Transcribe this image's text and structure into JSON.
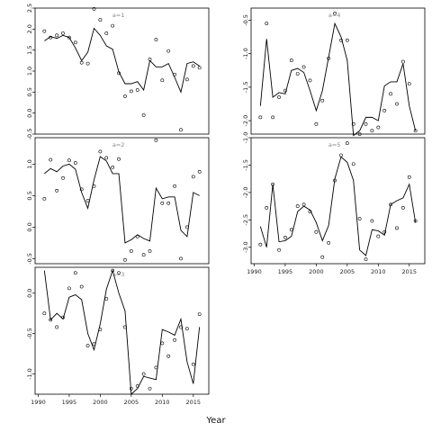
{
  "xlabel": "Year",
  "chart_data": [
    {
      "type": "line",
      "label": "a=1",
      "xlim": [
        1989.5,
        2017.5
      ],
      "ylim": [
        -0.5,
        2.5
      ],
      "xticks": [],
      "yticks": [
        {
          "v": -0.5,
          "t": "-0.5"
        },
        {
          "v": 0.0,
          "t": "0.0"
        },
        {
          "v": 0.5,
          "t": "0.5"
        },
        {
          "v": 1.0,
          "t": "1.0"
        },
        {
          "v": 1.5,
          "t": "1.5"
        },
        {
          "v": 2.0,
          "t": "2.0"
        },
        {
          "v": 2.5,
          "t": "2.5"
        }
      ],
      "line": {
        "x": [
          1991,
          1992,
          1993,
          1994,
          1995,
          1996,
          1997,
          1998,
          1999,
          2000,
          2001,
          2002,
          2003,
          2004,
          2005,
          2006,
          2007,
          2008,
          2009,
          2010,
          2011,
          2012,
          2013,
          2014,
          2015,
          2016
        ],
        "y": [
          1.72,
          1.82,
          1.78,
          1.85,
          1.8,
          1.55,
          1.25,
          1.45,
          2.02,
          1.85,
          1.6,
          1.52,
          0.98,
          0.7,
          0.7,
          0.75,
          0.55,
          1.25,
          1.1,
          1.1,
          1.18,
          0.85,
          0.5,
          1.18,
          1.22,
          1.12
        ]
      },
      "points": {
        "x": [
          1991,
          1992,
          1993,
          1994,
          1995,
          1996,
          1997,
          1998,
          1999,
          2000,
          2001,
          2002,
          2003,
          2004,
          2005,
          2006,
          2007,
          2008,
          2009,
          2010,
          2011,
          2012,
          2013,
          2014,
          2015,
          2016
        ],
        "y": [
          1.95,
          1.8,
          1.85,
          1.9,
          1.8,
          1.68,
          1.2,
          1.18,
          2.48,
          2.22,
          1.9,
          2.08,
          0.95,
          0.4,
          0.52,
          0.55,
          -0.05,
          1.28,
          1.75,
          0.78,
          1.48,
          0.92,
          -0.4,
          0.8,
          1.12,
          1.08
        ]
      }
    },
    {
      "type": "line",
      "label": "a=2",
      "xlim": [
        1989.5,
        2017.5
      ],
      "ylim": [
        -0.58,
        1.42
      ],
      "xticks": [],
      "yticks": [
        {
          "v": -0.5,
          "t": "-0.5"
        },
        {
          "v": 0.0,
          "t": "0.0"
        },
        {
          "v": 0.5,
          "t": "0.5"
        },
        {
          "v": 1.0,
          "t": "1.0"
        }
      ],
      "line": {
        "x": [
          1991,
          1992,
          1993,
          1994,
          1995,
          1996,
          1997,
          1998,
          1999,
          2000,
          2001,
          2002,
          2003,
          2004,
          2005,
          2006,
          2007,
          2008,
          2009,
          2010,
          2011,
          2012,
          2013,
          2014,
          2015,
          2016
        ],
        "y": [
          0.85,
          0.93,
          0.88,
          0.97,
          1.0,
          0.92,
          0.55,
          0.3,
          0.75,
          1.12,
          1.05,
          0.85,
          0.85,
          -0.25,
          -0.2,
          -0.12,
          -0.18,
          -0.22,
          0.62,
          0.45,
          0.48,
          0.48,
          -0.05,
          -0.15,
          0.55,
          0.5
        ]
      },
      "points": {
        "x": [
          1991,
          1992,
          1993,
          1994,
          1995,
          1996,
          1997,
          1998,
          1999,
          2000,
          2001,
          2002,
          2003,
          2004,
          2005,
          2006,
          2007,
          2008,
          2009,
          2010,
          2011,
          2012,
          2013,
          2014,
          2015,
          2016
        ],
        "y": [
          0.45,
          1.07,
          0.58,
          0.78,
          1.06,
          1.02,
          0.6,
          0.42,
          0.65,
          1.2,
          1.1,
          0.95,
          1.08,
          -0.52,
          -0.38,
          -0.15,
          -0.44,
          -0.38,
          1.38,
          0.38,
          0.38,
          0.65,
          -0.5,
          0.0,
          0.8,
          0.88
        ]
      }
    },
    {
      "type": "line",
      "label": "a=3",
      "xlim": [
        1989.5,
        2017.5
      ],
      "ylim": [
        -1.25,
        0.32
      ],
      "xticks": [
        {
          "v": 1990,
          "t": "1990"
        },
        {
          "v": 1995,
          "t": "1995"
        },
        {
          "v": 2000,
          "t": "2000"
        },
        {
          "v": 2005,
          "t": "2005"
        },
        {
          "v": 2010,
          "t": "2010"
        },
        {
          "v": 2015,
          "t": "2015"
        }
      ],
      "yticks": [
        {
          "v": -1.0,
          "t": "-1.0"
        },
        {
          "v": -0.5,
          "t": "-0.5"
        },
        {
          "v": 0.0,
          "t": "0.0"
        }
      ],
      "line": {
        "x": [
          1991,
          1992,
          1993,
          1994,
          1995,
          1996,
          1997,
          1998,
          1999,
          2000,
          2001,
          2002,
          2003,
          2004,
          2005,
          2006,
          2007,
          2008,
          2009,
          2010,
          2011,
          2012,
          2013,
          2014,
          2015,
          2016
        ],
        "y": [
          0.28,
          -0.33,
          -0.25,
          -0.32,
          -0.05,
          -0.02,
          -0.08,
          -0.5,
          -0.7,
          -0.38,
          0.05,
          0.28,
          0.0,
          -0.22,
          -1.25,
          -1.18,
          -1.03,
          -1.05,
          -1.07,
          -0.45,
          -0.48,
          -0.52,
          -0.32,
          -0.85,
          -1.12,
          -0.42
        ]
      },
      "points": {
        "x": [
          1991,
          1992,
          1993,
          1994,
          1995,
          1996,
          1997,
          1998,
          1999,
          2000,
          2001,
          2002,
          2003,
          2004,
          2005,
          2006,
          2007,
          2008,
          2009,
          2010,
          2011,
          2012,
          2013,
          2014,
          2015,
          2016
        ],
        "y": [
          -0.25,
          -0.33,
          -0.42,
          -0.3,
          0.06,
          0.25,
          0.08,
          -0.65,
          -0.63,
          -0.45,
          -0.07,
          0.28,
          0.25,
          -0.42,
          -1.18,
          -1.15,
          -1.0,
          -1.18,
          -0.92,
          -0.62,
          -0.78,
          -0.58,
          -0.42,
          -0.44,
          -0.88,
          -0.26
        ]
      }
    },
    {
      "type": "line",
      "label": "a=4",
      "xlim": [
        1989.5,
        2017.5
      ],
      "ylim": [
        -2.2,
        -0.32
      ],
      "xticks": [],
      "yticks": [
        {
          "v": -2.0,
          "t": "-2.0"
        },
        {
          "v": -1.5,
          "t": "-1.5"
        },
        {
          "v": -1.0,
          "t": "-1.0"
        },
        {
          "v": -0.5,
          "t": "-0.5"
        }
      ],
      "line": {
        "x": [
          1991,
          1992,
          1993,
          1994,
          1995,
          1996,
          1997,
          1998,
          1999,
          2000,
          2001,
          2002,
          2003,
          2004,
          2005,
          2006,
          2007,
          2008,
          2009,
          2010,
          2011,
          2012,
          2013,
          2014,
          2015,
          2016
        ],
        "y": [
          -1.78,
          -0.78,
          -1.65,
          -1.58,
          -1.6,
          -1.25,
          -1.22,
          -1.28,
          -1.55,
          -1.85,
          -1.55,
          -1.05,
          -0.55,
          -0.75,
          -1.1,
          -2.22,
          -2.15,
          -1.95,
          -1.95,
          -2.0,
          -1.48,
          -1.42,
          -1.42,
          -1.15,
          -1.78,
          -2.15
        ]
      },
      "points": {
        "x": [
          1991,
          1992,
          1993,
          1994,
          1995,
          1996,
          1997,
          1998,
          1999,
          2000,
          2001,
          2002,
          2003,
          2004,
          2005,
          2006,
          2007,
          2008,
          2009,
          2010,
          2011,
          2012,
          2013,
          2014,
          2015,
          2016
        ],
        "y": [
          -1.95,
          -0.55,
          -1.95,
          -1.65,
          -1.55,
          -1.1,
          -1.3,
          -1.2,
          -1.4,
          -2.05,
          -1.7,
          -1.07,
          -0.4,
          -0.8,
          -0.8,
          -2.05,
          -2.2,
          -2.05,
          -2.15,
          -2.1,
          -1.85,
          -1.6,
          -1.75,
          -1.12,
          -1.45,
          -2.15
        ]
      }
    },
    {
      "type": "line",
      "label": "a=5",
      "xlim": [
        1989.5,
        2017.5
      ],
      "ylim": [
        -3.3,
        -1.0
      ],
      "xticks": [
        {
          "v": 1990,
          "t": "1990"
        },
        {
          "v": 1995,
          "t": "1995"
        },
        {
          "v": 2000,
          "t": "2000"
        },
        {
          "v": 2005,
          "t": "2005"
        },
        {
          "v": 2010,
          "t": "2010"
        },
        {
          "v": 2015,
          "t": "2015"
        }
      ],
      "yticks": [
        {
          "v": -3.0,
          "t": "-3.0"
        },
        {
          "v": -2.5,
          "t": "-2.5"
        },
        {
          "v": -2.0,
          "t": "-2.0"
        },
        {
          "v": -1.5,
          "t": "-1.5"
        },
        {
          "v": -1.0,
          "t": "-1.0"
        }
      ],
      "line": {
        "x": [
          1991,
          1992,
          1993,
          1994,
          1995,
          1996,
          1997,
          1998,
          1999,
          2000,
          2001,
          2002,
          2003,
          2004,
          2005,
          2006,
          2007,
          2008,
          2009,
          2010,
          2011,
          2012,
          2013,
          2014,
          2015,
          2016
        ],
        "y": [
          -2.62,
          -3.0,
          -1.85,
          -2.9,
          -2.88,
          -2.8,
          -2.35,
          -2.25,
          -2.32,
          -2.55,
          -2.88,
          -2.6,
          -1.75,
          -1.35,
          -1.45,
          -1.78,
          -3.05,
          -3.15,
          -2.68,
          -2.7,
          -2.78,
          -2.22,
          -2.15,
          -2.1,
          -1.85,
          -2.55
        ]
      },
      "points": {
        "x": [
          1991,
          1992,
          1993,
          1994,
          1995,
          1996,
          1997,
          1998,
          1999,
          2000,
          2001,
          2002,
          2003,
          2004,
          2005,
          2006,
          2007,
          2008,
          2009,
          2010,
          2011,
          2012,
          2013,
          2014,
          2015,
          2016
        ],
        "y": [
          -2.95,
          -2.28,
          -1.85,
          -3.05,
          -2.82,
          -2.68,
          -2.25,
          -2.22,
          -2.35,
          -2.72,
          -3.18,
          -2.92,
          -1.78,
          -1.32,
          -1.1,
          -1.48,
          -2.48,
          -3.22,
          -2.52,
          -2.8,
          -2.72,
          -2.22,
          -2.65,
          -2.28,
          -1.72,
          -2.52
        ]
      }
    }
  ]
}
